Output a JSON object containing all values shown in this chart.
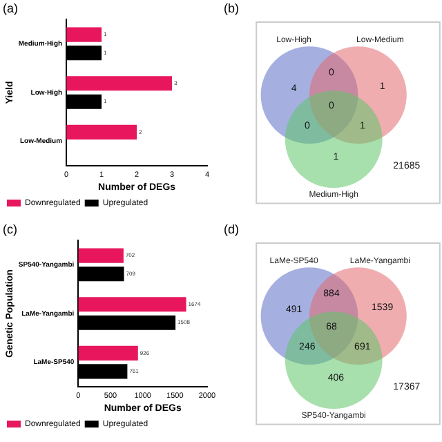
{
  "chart_data": [
    {
      "type": "bar",
      "orientation": "horizontal",
      "title": "(a)",
      "ylabel": "Yield",
      "xlabel": "Number of DEGs",
      "categories": [
        "Medium-High",
        "Low-High",
        "Low-Medium"
      ],
      "series": [
        {
          "name": "Downregulated",
          "color": "#e8175d",
          "values": [
            1,
            3,
            2
          ]
        },
        {
          "name": "Upregulated",
          "color": "#000000",
          "values": [
            1,
            1,
            null
          ]
        }
      ],
      "xlim": [
        0,
        4
      ],
      "xticks": [
        0,
        1,
        2,
        3,
        4
      ],
      "data_labels": true,
      "legend": "bottom",
      "grid": false
    },
    {
      "type": "other",
      "title": "(b)",
      "annotations": [
        "Low-High",
        "Low-Medium",
        "Medium-High",
        "4",
        "0",
        "1",
        "0",
        "0",
        "1",
        "1",
        "21685"
      ]
    },
    {
      "type": "bar",
      "orientation": "horizontal",
      "title": "(c)",
      "ylabel": "Genetic Population",
      "xlabel": "Number of DEGs",
      "categories": [
        "SP540-Yangambi",
        "LaMe-Yangambi",
        "LaMe-SP540"
      ],
      "series": [
        {
          "name": "Downregulated",
          "color": "#e8175d",
          "values": [
            702,
            1674,
            926
          ]
        },
        {
          "name": "Upregulated",
          "color": "#000000",
          "values": [
            709,
            1508,
            761
          ]
        }
      ],
      "xlim": [
        0,
        2000
      ],
      "xticks": [
        0,
        500,
        1000,
        1500,
        2000
      ],
      "data_labels": true,
      "legend": "bottom",
      "grid": false
    },
    {
      "type": "other",
      "title": "(d)",
      "annotations": [
        "LaMe-SP540",
        "LaMe-Yangambi",
        "SP540-Yangambi",
        "491",
        "884",
        "1539",
        "246",
        "68",
        "691",
        "406",
        "17367"
      ]
    }
  ]
}
